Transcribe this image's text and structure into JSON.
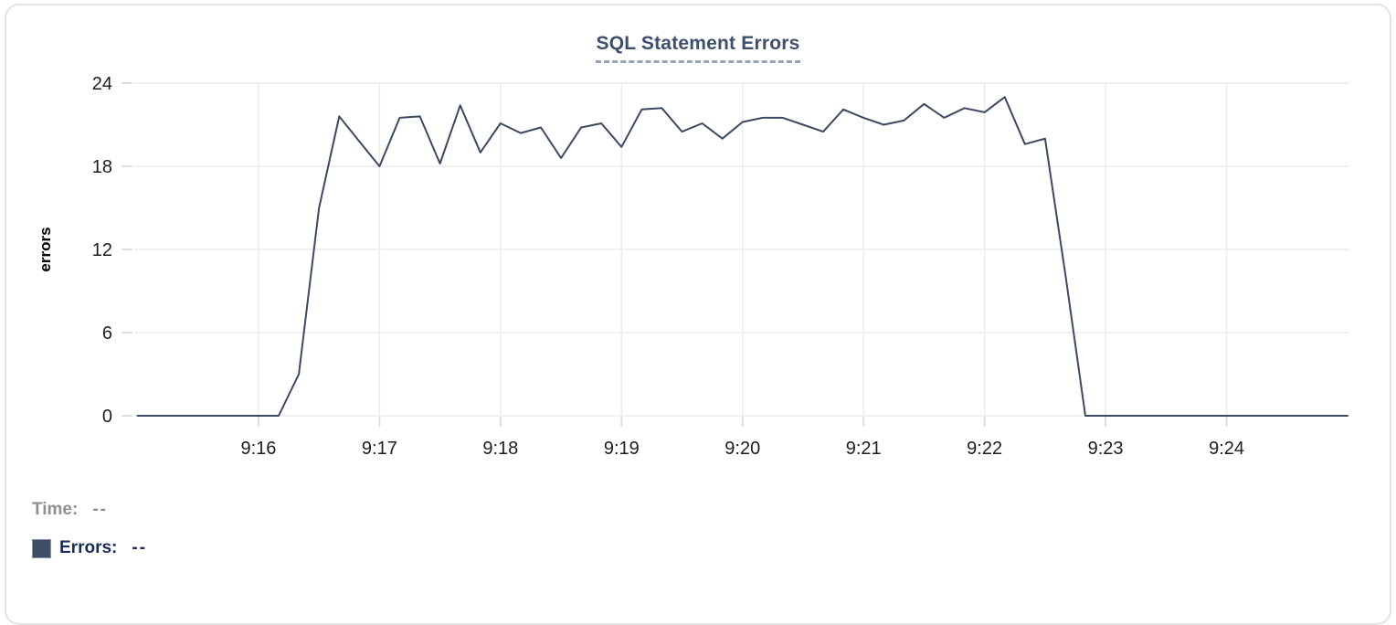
{
  "chart": {
    "title": "SQL Statement Errors",
    "y_axis_label": "errors"
  },
  "chart_data": {
    "type": "line",
    "title": "SQL Statement Errors",
    "xlabel": "",
    "ylabel": "errors",
    "series_name": "Errors",
    "ylim": [
      0,
      24
    ],
    "grid": true,
    "legend_position": "bottom-left",
    "line_color": "#3b4961",
    "grid_color": "#ececec",
    "tick_color": "#dedede",
    "label_color": "#1d1d1f",
    "y_tick_labels": [
      0,
      6,
      12,
      18,
      24
    ],
    "x_tick_labels": [
      "9:16",
      "9:17",
      "9:18",
      "9:19",
      "9:20",
      "9:21",
      "9:22",
      "9:23",
      "9:24"
    ],
    "x": [
      "9:15:00",
      "9:15:10",
      "9:15:20",
      "9:15:30",
      "9:15:40",
      "9:15:50",
      "9:16:00",
      "9:16:10",
      "9:16:20",
      "9:16:30",
      "9:16:40",
      "9:16:50",
      "9:17:00",
      "9:17:10",
      "9:17:20",
      "9:17:30",
      "9:17:40",
      "9:17:50",
      "9:18:00",
      "9:18:10",
      "9:18:20",
      "9:18:30",
      "9:18:40",
      "9:18:50",
      "9:19:00",
      "9:19:10",
      "9:19:20",
      "9:19:30",
      "9:19:40",
      "9:19:50",
      "9:20:00",
      "9:20:10",
      "9:20:20",
      "9:20:30",
      "9:20:40",
      "9:20:50",
      "9:21:00",
      "9:21:10",
      "9:21:20",
      "9:21:30",
      "9:21:40",
      "9:21:50",
      "9:22:00",
      "9:22:10",
      "9:22:20",
      "9:22:30",
      "9:22:40",
      "9:22:50",
      "9:23:00",
      "9:23:10",
      "9:23:20",
      "9:23:30",
      "9:23:40",
      "9:23:50",
      "9:24:00",
      "9:24:10",
      "9:24:20",
      "9:24:30",
      "9:24:40",
      "9:24:50",
      "9:25:00"
    ],
    "values": [
      0,
      0,
      0,
      0,
      0,
      0,
      0,
      0,
      3,
      15,
      21.6,
      19.8,
      18,
      21.5,
      21.6,
      18.2,
      22.4,
      19,
      21.1,
      20.4,
      20.8,
      18.6,
      20.8,
      21.1,
      19.4,
      22.1,
      22.2,
      20.5,
      21.1,
      20,
      21.2,
      21.5,
      21.5,
      21,
      20.5,
      22.1,
      21.5,
      21,
      21.3,
      22.5,
      21.5,
      22.2,
      21.9,
      23,
      19.6,
      20,
      10.3,
      0,
      0,
      0,
      0,
      0,
      0,
      0,
      0,
      0,
      0,
      0,
      0,
      0,
      0
    ]
  },
  "footer": {
    "time_label": "Time:",
    "time_value": "--",
    "errors_label": "Errors:",
    "errors_value": "--",
    "swatch_color": "#3e4c66"
  }
}
